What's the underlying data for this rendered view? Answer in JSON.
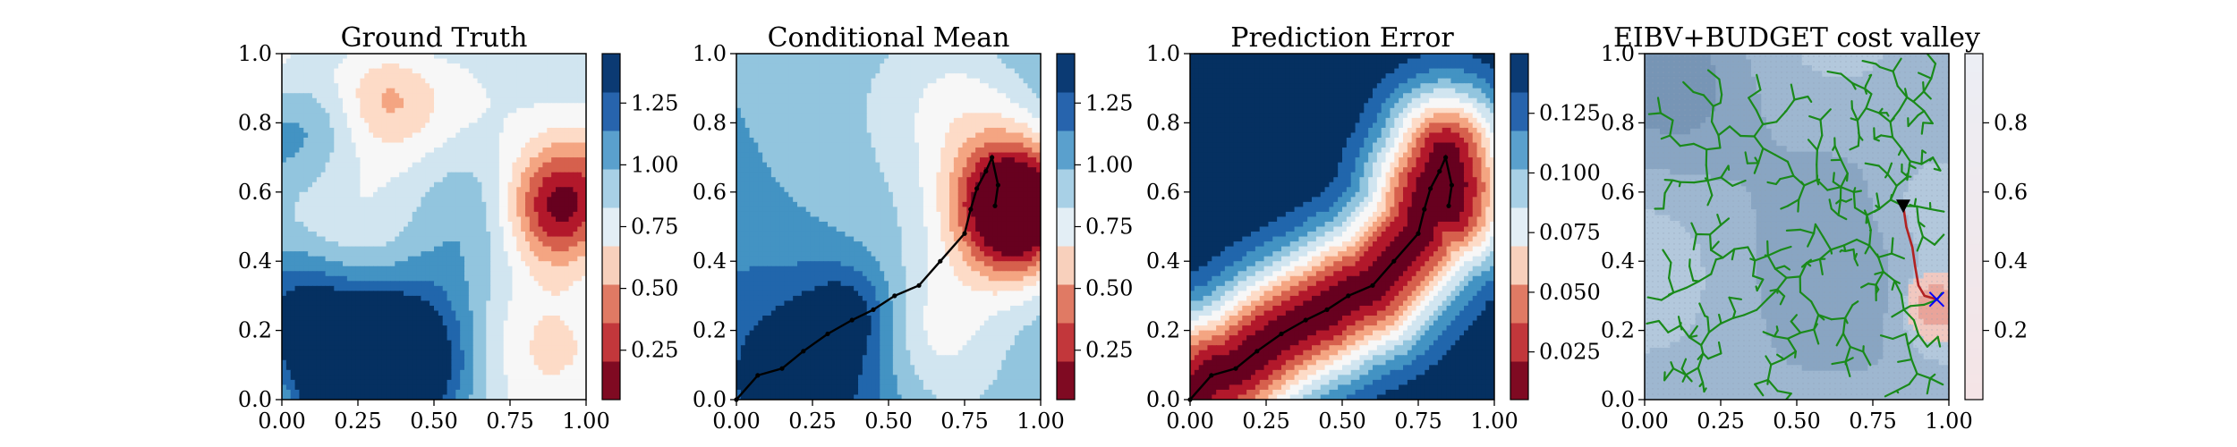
{
  "chart_data": [
    {
      "type": "heatmap",
      "title": "Ground Truth",
      "xlabel": "",
      "ylabel": "",
      "xlim": [
        0,
        1
      ],
      "ylim": [
        0,
        1
      ],
      "xticks": [
        "0.00",
        "0.25",
        "0.50",
        "0.75",
        "1.00"
      ],
      "yticks": [
        "0.0",
        "0.2",
        "0.4",
        "0.6",
        "0.8",
        "1.0"
      ],
      "colormap": "RdBu",
      "colorbar": {
        "range": [
          0.05,
          1.45
        ],
        "ticks": [
          0.25,
          0.5,
          0.75,
          1.0,
          1.25
        ],
        "ticklabels": [
          "0.25",
          "0.50",
          "0.75",
          "1.00",
          "1.25"
        ]
      },
      "features": [
        {
          "x": 0.9,
          "y": 0.55,
          "value": 0.05,
          "spread": 0.13
        },
        {
          "x": 0.35,
          "y": 0.88,
          "value": 0.7,
          "spread": 0.1
        },
        {
          "x": 0.25,
          "y": 0.05,
          "value": 1.45,
          "spread": 0.14
        },
        {
          "x": 0.45,
          "y": 0.2,
          "value": 1.35,
          "spread": 0.18
        },
        {
          "x": 0.05,
          "y": 0.3,
          "value": 1.25,
          "spread": 0.15
        },
        {
          "x": 0.1,
          "y": 0.8,
          "value": 1.05,
          "spread": 0.12
        }
      ]
    },
    {
      "type": "heatmap",
      "title": "Conditional Mean",
      "xlabel": "",
      "ylabel": "",
      "xlim": [
        0,
        1
      ],
      "ylim": [
        0,
        1
      ],
      "xticks": [
        "0.00",
        "0.25",
        "0.50",
        "0.75",
        "1.00"
      ],
      "yticks": [
        "0.0",
        "0.2",
        "0.4",
        "0.6",
        "0.8",
        "1.0"
      ],
      "colormap": "RdBu",
      "colorbar": {
        "range": [
          0.05,
          1.45
        ],
        "ticks": [
          0.25,
          0.5,
          0.75,
          1.0,
          1.25
        ],
        "ticklabels": [
          "0.25",
          "0.50",
          "0.75",
          "1.00",
          "1.25"
        ]
      },
      "path": [
        [
          0,
          0
        ],
        [
          0.07,
          0.07
        ],
        [
          0.15,
          0.09
        ],
        [
          0.22,
          0.14
        ],
        [
          0.3,
          0.19
        ],
        [
          0.38,
          0.23
        ],
        [
          0.45,
          0.26
        ],
        [
          0.52,
          0.3
        ],
        [
          0.6,
          0.33
        ],
        [
          0.67,
          0.4
        ],
        [
          0.75,
          0.48
        ],
        [
          0.77,
          0.55
        ],
        [
          0.79,
          0.61
        ],
        [
          0.82,
          0.66
        ],
        [
          0.84,
          0.7
        ],
        [
          0.86,
          0.62
        ],
        [
          0.85,
          0.56
        ]
      ]
    },
    {
      "type": "heatmap",
      "title": "Prediction Error",
      "xlabel": "",
      "ylabel": "",
      "xlim": [
        0,
        1
      ],
      "ylim": [
        0,
        1
      ],
      "xticks": [
        "0.00",
        "0.25",
        "0.50",
        "0.75",
        "1.00"
      ],
      "yticks": [
        "0.0",
        "0.2",
        "0.4",
        "0.6",
        "0.8",
        "1.0"
      ],
      "colormap": "RdBu",
      "colorbar": {
        "range": [
          0.005,
          0.15
        ],
        "ticks": [
          0.025,
          0.05,
          0.075,
          0.1,
          0.125
        ],
        "ticklabels": [
          "0.025",
          "0.050",
          "0.075",
          "0.100",
          "0.125"
        ]
      },
      "path": [
        [
          0,
          0
        ],
        [
          0.07,
          0.07
        ],
        [
          0.15,
          0.09
        ],
        [
          0.22,
          0.14
        ],
        [
          0.3,
          0.19
        ],
        [
          0.38,
          0.23
        ],
        [
          0.45,
          0.26
        ],
        [
          0.52,
          0.3
        ],
        [
          0.6,
          0.33
        ],
        [
          0.67,
          0.4
        ],
        [
          0.75,
          0.48
        ],
        [
          0.77,
          0.55
        ],
        [
          0.79,
          0.61
        ],
        [
          0.82,
          0.66
        ],
        [
          0.84,
          0.7
        ],
        [
          0.86,
          0.62
        ],
        [
          0.85,
          0.56
        ]
      ]
    },
    {
      "type": "heatmap",
      "title": "EIBV+BUDGET cost valley",
      "xlabel": "",
      "ylabel": "",
      "xlim": [
        0,
        1
      ],
      "ylim": [
        0,
        1
      ],
      "xticks": [
        "0.00",
        "0.25",
        "0.50",
        "0.75",
        "1.00"
      ],
      "yticks": [
        "0.0",
        "0.2",
        "0.4",
        "0.6",
        "0.8",
        "1.0"
      ],
      "colormap": "RdBu",
      "colorbar": {
        "range": [
          0,
          1
        ],
        "ticks": [
          0.2,
          0.4,
          0.6,
          0.8
        ],
        "ticklabels": [
          "0.2",
          "0.4",
          "0.6",
          "0.8"
        ]
      },
      "tree_root": [
        0.85,
        0.56
      ],
      "current_location": [
        0.85,
        0.56
      ],
      "target": [
        0.96,
        0.29
      ],
      "selected_path": [
        [
          0.85,
          0.56
        ],
        [
          0.86,
          0.5
        ],
        [
          0.88,
          0.44
        ],
        [
          0.89,
          0.38
        ],
        [
          0.9,
          0.33
        ],
        [
          0.92,
          0.3
        ],
        [
          0.96,
          0.29
        ]
      ]
    }
  ],
  "colors": {
    "tree": "#1a8a1a",
    "path": "#000000",
    "selected_path": "#b22222",
    "target_marker": "#0000ff"
  }
}
